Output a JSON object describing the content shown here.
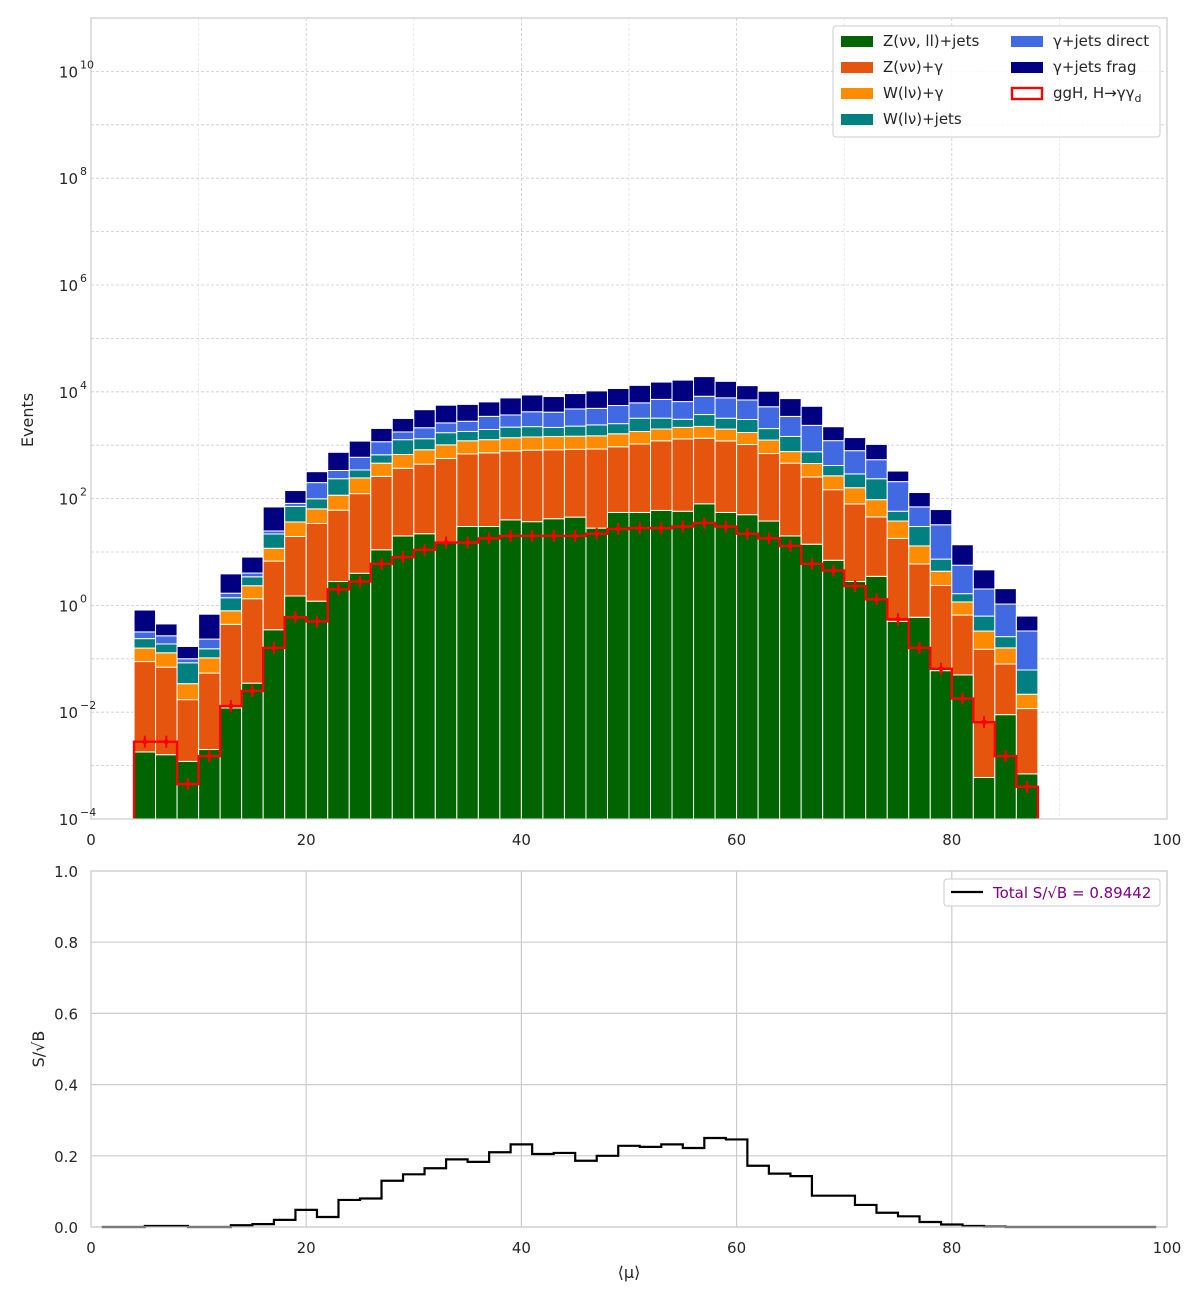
{
  "chart_data": [
    {
      "type": "bar",
      "stacked": true,
      "ylabel": "Events",
      "xlabel": "",
      "yscale": "log",
      "xlim": [
        0,
        100
      ],
      "ylim": [
        0.0001,
        100000000000
      ],
      "xticks": [
        0,
        20,
        40,
        60,
        80,
        100
      ],
      "xtick_labels": [
        "0",
        "20",
        "40",
        "60",
        "80",
        "100"
      ],
      "ytick_exponents": [
        -4,
        -2,
        0,
        2,
        4,
        6,
        8,
        10
      ],
      "ytick_labels": [
        "10",
        "10",
        "10",
        "10",
        "10",
        "10",
        "10",
        "10"
      ],
      "grid": true,
      "legend_position": "top-right",
      "bin_edges": [
        0,
        2,
        4,
        6,
        8,
        10,
        12,
        14,
        16,
        18,
        20,
        22,
        24,
        26,
        28,
        30,
        32,
        34,
        36,
        38,
        40,
        42,
        44,
        46,
        48,
        50,
        52,
        54,
        56,
        58,
        60,
        62,
        64,
        66,
        68,
        70,
        72,
        74,
        76,
        78,
        80,
        82,
        84,
        86,
        88,
        90,
        92,
        94,
        96,
        98,
        100
      ],
      "series": [
        {
          "name": "Z(νν, ll)+jets",
          "color": "#006400",
          "values": [
            0,
            0,
            0.0018,
            0.0016,
            0.0012,
            0.002,
            0.012,
            0.035,
            0.35,
            1.5,
            1.2,
            2.8,
            4,
            11,
            20,
            22,
            15,
            30,
            30,
            40,
            37,
            42,
            45,
            28,
            55,
            55,
            60,
            58,
            80,
            55,
            50,
            38,
            20,
            14,
            7,
            2.8,
            3.5,
            0.5,
            0.6,
            0.06,
            0.05,
            0.0006,
            0.009,
            0.0007,
            0,
            0,
            0,
            0,
            0,
            0
          ]
        },
        {
          "name": "Z(νν)+γ",
          "color": "#E6550D",
          "values": [
            0,
            0,
            0.087,
            0.068,
            0.016,
            0.052,
            0.43,
            1.3,
            6.4,
            18,
            33,
            58,
            120,
            250,
            350,
            420,
            550,
            660,
            690,
            740,
            770,
            780,
            790,
            820,
            880,
            1000,
            1150,
            1250,
            1270,
            1150,
            980,
            660,
            440,
            240,
            140,
            77,
            42,
            17.5,
            5.4,
            2.3,
            0.61,
            0.15,
            0.071,
            0.011,
            0,
            0,
            0,
            0,
            0,
            0
          ]
        },
        {
          "name": "W(lν)+γ",
          "color": "#FF8C00",
          "values": [
            0,
            0,
            0.07,
            0.06,
            0.017,
            0.05,
            0.35,
            1,
            5,
            17,
            30,
            55,
            120,
            200,
            300,
            380,
            450,
            520,
            550,
            600,
            620,
            630,
            640,
            650,
            700,
            750,
            800,
            850,
            900,
            800,
            700,
            550,
            300,
            200,
            120,
            80,
            50,
            20,
            7,
            2,
            0.5,
            0.18,
            0.08,
            0.01,
            0,
            0,
            0,
            0,
            0,
            0
          ]
        },
        {
          "name": "W(lν)+jets",
          "color": "#008080",
          "values": [
            0,
            0,
            0.08,
            0.06,
            0.05,
            0.05,
            0.6,
            1.1,
            10,
            35,
            35,
            120,
            100,
            200,
            600,
            500,
            700,
            600,
            700,
            800,
            800,
            700,
            800,
            900,
            900,
            1400,
            1200,
            900,
            1500,
            1200,
            1300,
            800,
            700,
            300,
            150,
            130,
            140,
            20,
            17,
            3,
            0.5,
            0.3,
            0.1,
            0.04,
            0,
            0,
            0,
            0,
            0,
            0
          ]
        },
        {
          "name": "γ+jets direct",
          "color": "#4169E1",
          "values": [
            0,
            0,
            0.08,
            0.08,
            0.016,
            0.08,
            0.3,
            0.6,
            3,
            10,
            100,
            100,
            250,
            500,
            500,
            800,
            900,
            1000,
            1500,
            1500,
            2000,
            2000,
            2500,
            2500,
            3000,
            3000,
            4000,
            3500,
            4500,
            4500,
            4000,
            3200,
            2000,
            1600,
            800,
            500,
            300,
            150,
            40,
            25,
            4,
            1.4,
            0.8,
            0.27,
            0,
            0,
            0,
            0,
            0,
            0
          ]
        },
        {
          "name": "γ+jets frag",
          "color": "#000080",
          "values": [
            0,
            0,
            0.5,
            0.18,
            0.07,
            0.45,
            2.2,
            4,
            45,
            60,
            120,
            400,
            600,
            900,
            1400,
            2500,
            3000,
            3000,
            3000,
            4000,
            4500,
            4000,
            4500,
            5500,
            6000,
            7000,
            8000,
            10000,
            11000,
            8000,
            6000,
            5000,
            4000,
            3000,
            1000,
            600,
            500,
            120,
            60,
            30,
            8,
            2.6,
            1,
            0.3,
            0,
            0,
            0,
            0,
            0,
            0
          ]
        }
      ],
      "signal": {
        "name": "ggH, H→γγ",
        "name_subscript": "d",
        "color": "#FF0000",
        "values": [
          0,
          0,
          0.0028,
          0.0028,
          0.00045,
          0.0015,
          0.013,
          0.025,
          0.16,
          0.6,
          0.5,
          2,
          2.8,
          6,
          8,
          11,
          15,
          15,
          18,
          20,
          20,
          20,
          20,
          22,
          27,
          28,
          28,
          30,
          35,
          30,
          22,
          18,
          13,
          6,
          4.5,
          2.3,
          1.3,
          0.55,
          0.16,
          0.065,
          0.018,
          0.0065,
          0.0015,
          0.0004,
          0,
          0,
          0,
          0,
          0,
          0
        ]
      }
    },
    {
      "type": "line",
      "drawstyle": "steps",
      "ylabel": "S/√B",
      "xlabel": "⟨μ⟩",
      "xlim": [
        0,
        100
      ],
      "ylim": [
        0,
        1
      ],
      "xticks": [
        0,
        20,
        40,
        60,
        80,
        100
      ],
      "xtick_labels": [
        "0",
        "20",
        "40",
        "60",
        "80",
        "100"
      ],
      "yticks": [
        0,
        0.2,
        0.4,
        0.6,
        0.8,
        1
      ],
      "ytick_labels": [
        "0.0",
        "0.2",
        "0.4",
        "0.6",
        "0.8",
        "1.0"
      ],
      "grid": true,
      "legend_position": "top-right",
      "legend_label_color": "#800080",
      "bin_edges": [
        0,
        2,
        4,
        6,
        8,
        10,
        12,
        14,
        16,
        18,
        20,
        22,
        24,
        26,
        28,
        30,
        32,
        34,
        36,
        38,
        40,
        42,
        44,
        46,
        48,
        50,
        52,
        54,
        56,
        58,
        60,
        62,
        64,
        66,
        68,
        70,
        72,
        74,
        76,
        78,
        80,
        82,
        84,
        86,
        88,
        90,
        92,
        94,
        96,
        98,
        100
      ],
      "series": [
        {
          "name": "Total S/√B = 0.89442",
          "color": "#000000",
          "values": [
            0,
            0,
            0.003,
            0.003,
            0,
            0,
            0.005,
            0.008,
            0.02,
            0.048,
            0.028,
            0.076,
            0.08,
            0.13,
            0.148,
            0.165,
            0.19,
            0.183,
            0.21,
            0.232,
            0.205,
            0.208,
            0.186,
            0.2,
            0.228,
            0.225,
            0.232,
            0.222,
            0.25,
            0.246,
            0.172,
            0.15,
            0.143,
            0.088,
            0.088,
            0.062,
            0.04,
            0.03,
            0.014,
            0.007,
            0.003,
            0.001,
            0,
            0,
            0,
            0,
            0,
            0,
            0,
            0
          ]
        }
      ]
    }
  ]
}
